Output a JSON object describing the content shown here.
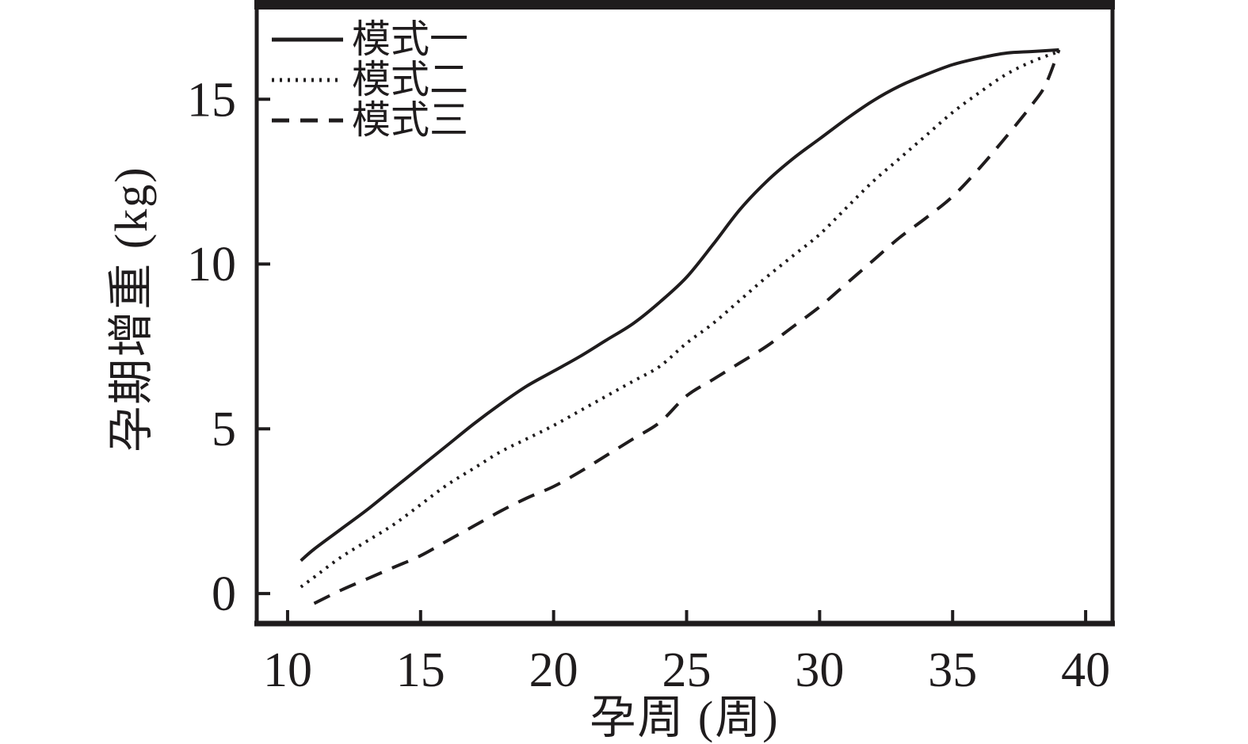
{
  "figure": {
    "background": "#ffffff",
    "ink_color": "#1f1c1d"
  },
  "chart_data": {
    "type": "line",
    "title": "",
    "xlabel": "孕周 (周)",
    "ylabel": "孕期增重 (kg)",
    "xlim": [
      8.84,
      41.01
    ],
    "ylim": [
      -0.91,
      17.82
    ],
    "x_ticks": [
      10,
      15,
      20,
      25,
      30,
      35,
      40
    ],
    "x_tick_labels": [
      "10",
      "15",
      "20",
      "25",
      "30",
      "35",
      "40"
    ],
    "y_ticks": [
      0,
      5,
      10,
      15
    ],
    "y_tick_labels": [
      "0",
      "5",
      "10",
      "15"
    ],
    "grid": false,
    "legend_position": "top-left-inside",
    "line_color": "#1f1c1d",
    "line_width": 4,
    "series": [
      {
        "name": "模式一",
        "line_style": "solid",
        "dash": "",
        "x": [
          10.5,
          11,
          12,
          13,
          14,
          15,
          16,
          17,
          18,
          19,
          20,
          21,
          22,
          23,
          24,
          25,
          26,
          27,
          28,
          29,
          30,
          31,
          32,
          33,
          34,
          35,
          36,
          37,
          38,
          39
        ],
        "y": [
          1.0,
          1.35,
          1.95,
          2.55,
          3.2,
          3.85,
          4.5,
          5.15,
          5.75,
          6.3,
          6.75,
          7.2,
          7.7,
          8.2,
          8.85,
          9.6,
          10.6,
          11.65,
          12.5,
          13.2,
          13.8,
          14.4,
          14.95,
          15.4,
          15.75,
          16.05,
          16.25,
          16.4,
          16.45,
          16.5
        ]
      },
      {
        "name": "模式二",
        "line_style": "dotted",
        "dash": "3 7",
        "x": [
          10.5,
          11,
          12,
          13,
          14,
          15,
          16,
          17,
          18,
          19,
          20,
          21,
          22,
          23,
          24,
          25,
          26,
          27,
          28,
          29,
          30,
          31,
          32,
          33,
          34,
          35,
          36,
          37,
          38,
          39
        ],
        "y": [
          0.2,
          0.5,
          1.1,
          1.6,
          2.1,
          2.7,
          3.3,
          3.8,
          4.3,
          4.7,
          5.1,
          5.55,
          6.0,
          6.45,
          6.9,
          7.6,
          8.2,
          8.9,
          9.6,
          10.25,
          10.9,
          11.7,
          12.5,
          13.2,
          13.9,
          14.6,
          15.2,
          15.75,
          16.15,
          16.45
        ]
      },
      {
        "name": "模式三",
        "line_style": "dashed",
        "dash": "22 14",
        "x": [
          11,
          12,
          13,
          14,
          15,
          16,
          17,
          18,
          19,
          20,
          21,
          22,
          23,
          24,
          25,
          26,
          27,
          28,
          29,
          30,
          31,
          32,
          33,
          34,
          35,
          36,
          37,
          38,
          38.5,
          39
        ],
        "y": [
          -0.3,
          0.1,
          0.45,
          0.8,
          1.15,
          1.6,
          2.05,
          2.5,
          2.9,
          3.25,
          3.7,
          4.2,
          4.7,
          5.2,
          6.0,
          6.5,
          7.0,
          7.5,
          8.1,
          8.7,
          9.4,
          10.1,
          10.8,
          11.4,
          12.05,
          12.9,
          13.85,
          14.85,
          15.45,
          16.5
        ]
      }
    ]
  },
  "legend": {
    "items": [
      {
        "label": "模式一"
      },
      {
        "label": "模式二"
      },
      {
        "label": "模式三"
      }
    ]
  }
}
